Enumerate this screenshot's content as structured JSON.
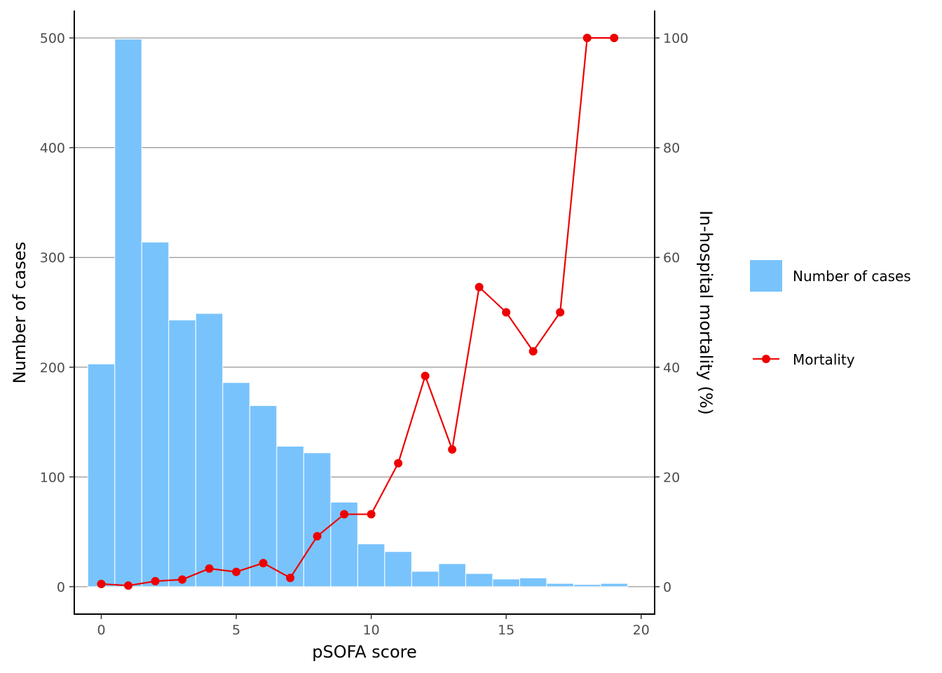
{
  "chart_data": {
    "type": "bar+line",
    "title": "",
    "xlabel": "pSOFA score",
    "ylabel_left": "Number of cases",
    "ylabel_right": "In-hospital mortality (%)",
    "xlim": [
      -1,
      20.5
    ],
    "ylim_left": [
      -25,
      525
    ],
    "ylim_right": [
      -5,
      105
    ],
    "x_ticks": [
      0,
      5,
      10,
      15,
      20
    ],
    "y_ticks_left": [
      0,
      100,
      200,
      300,
      400,
      500
    ],
    "y_ticks_right": [
      0,
      20,
      40,
      60,
      80,
      100
    ],
    "grid": "horizontal major lines",
    "legend_position": "right",
    "series": [
      {
        "name": "Number of cases",
        "kind": "bar",
        "axis": "left",
        "color": "#79c3fc",
        "x": [
          0,
          1,
          2,
          3,
          4,
          5,
          6,
          7,
          8,
          9,
          10,
          11,
          12,
          13,
          14,
          15,
          16,
          17,
          18,
          19
        ],
        "values": [
          203,
          499,
          314,
          243,
          249,
          186,
          165,
          128,
          122,
          77,
          39,
          32,
          14,
          21,
          12,
          7,
          8,
          3,
          2,
          3
        ]
      },
      {
        "name": "Mortality",
        "kind": "line",
        "axis": "right",
        "color": "#ee0000",
        "x": [
          0,
          1,
          2,
          3,
          4,
          5,
          6,
          7,
          8,
          9,
          10,
          11,
          12,
          13,
          14,
          15,
          16,
          17,
          18,
          19
        ],
        "values": [
          0.5,
          0.2,
          1.0,
          1.3,
          3.3,
          2.7,
          4.3,
          1.6,
          9.2,
          13.2,
          13.2,
          22.5,
          38.4,
          25.0,
          54.6,
          50.0,
          42.9,
          50.0,
          100.0,
          100.0
        ]
      }
    ]
  }
}
